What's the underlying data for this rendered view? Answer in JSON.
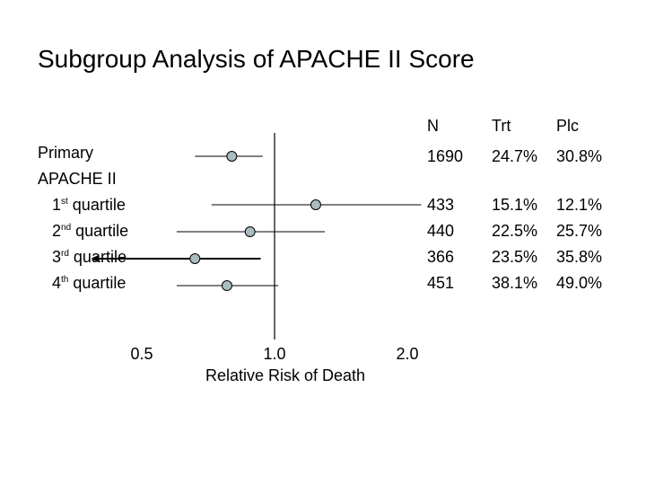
{
  "title": "Subgroup Analysis of APACHE II Score",
  "headers": {
    "n": "N",
    "trt": "Trt",
    "plc": "Plc"
  },
  "group_label": "APACHE II",
  "colors": {
    "marker_fill": "#a8bcc2",
    "line": "#000000"
  },
  "chart_data": {
    "type": "forest",
    "title": "Subgroup Analysis of APACHE II Score",
    "xlabel": "Relative Risk of Death",
    "x_scale": "log",
    "xlim": [
      0.5,
      2.0
    ],
    "xticks": [
      "0.5",
      "1.0",
      "2.0"
    ],
    "reference_line": 1.0,
    "rows": [
      {
        "label": "Primary",
        "ord": "",
        "suffix": "",
        "rr": 0.8,
        "lo": 0.66,
        "hi": 0.94,
        "n": "1690",
        "trt": "24.7%",
        "plc": "30.8%"
      },
      {
        "label": "",
        "ord": "1",
        "sup": "st",
        "suffix": " quartile",
        "rr": 1.24,
        "lo": 0.72,
        "hi": 2.15,
        "n": "433",
        "trt": "15.1%",
        "plc": "12.1%"
      },
      {
        "label": "",
        "ord": "2",
        "sup": "nd",
        "suffix": " quartile",
        "rr": 0.88,
        "lo": 0.6,
        "hi": 1.3,
        "n": "440",
        "trt": "22.5%",
        "plc": "25.7%"
      },
      {
        "label": "",
        "ord": "3",
        "sup": "rd",
        "suffix": " quartile",
        "rr": 0.66,
        "lo": 0.45,
        "hi": 0.93,
        "lower_arrow": true,
        "n": "366",
        "trt": "23.5%",
        "plc": "35.8%"
      },
      {
        "label": "",
        "ord": "4",
        "sup": "th",
        "suffix": " quartile",
        "rr": 0.78,
        "lo": 0.6,
        "hi": 1.02,
        "n": "451",
        "trt": "38.1%",
        "plc": "49.0%"
      }
    ]
  }
}
